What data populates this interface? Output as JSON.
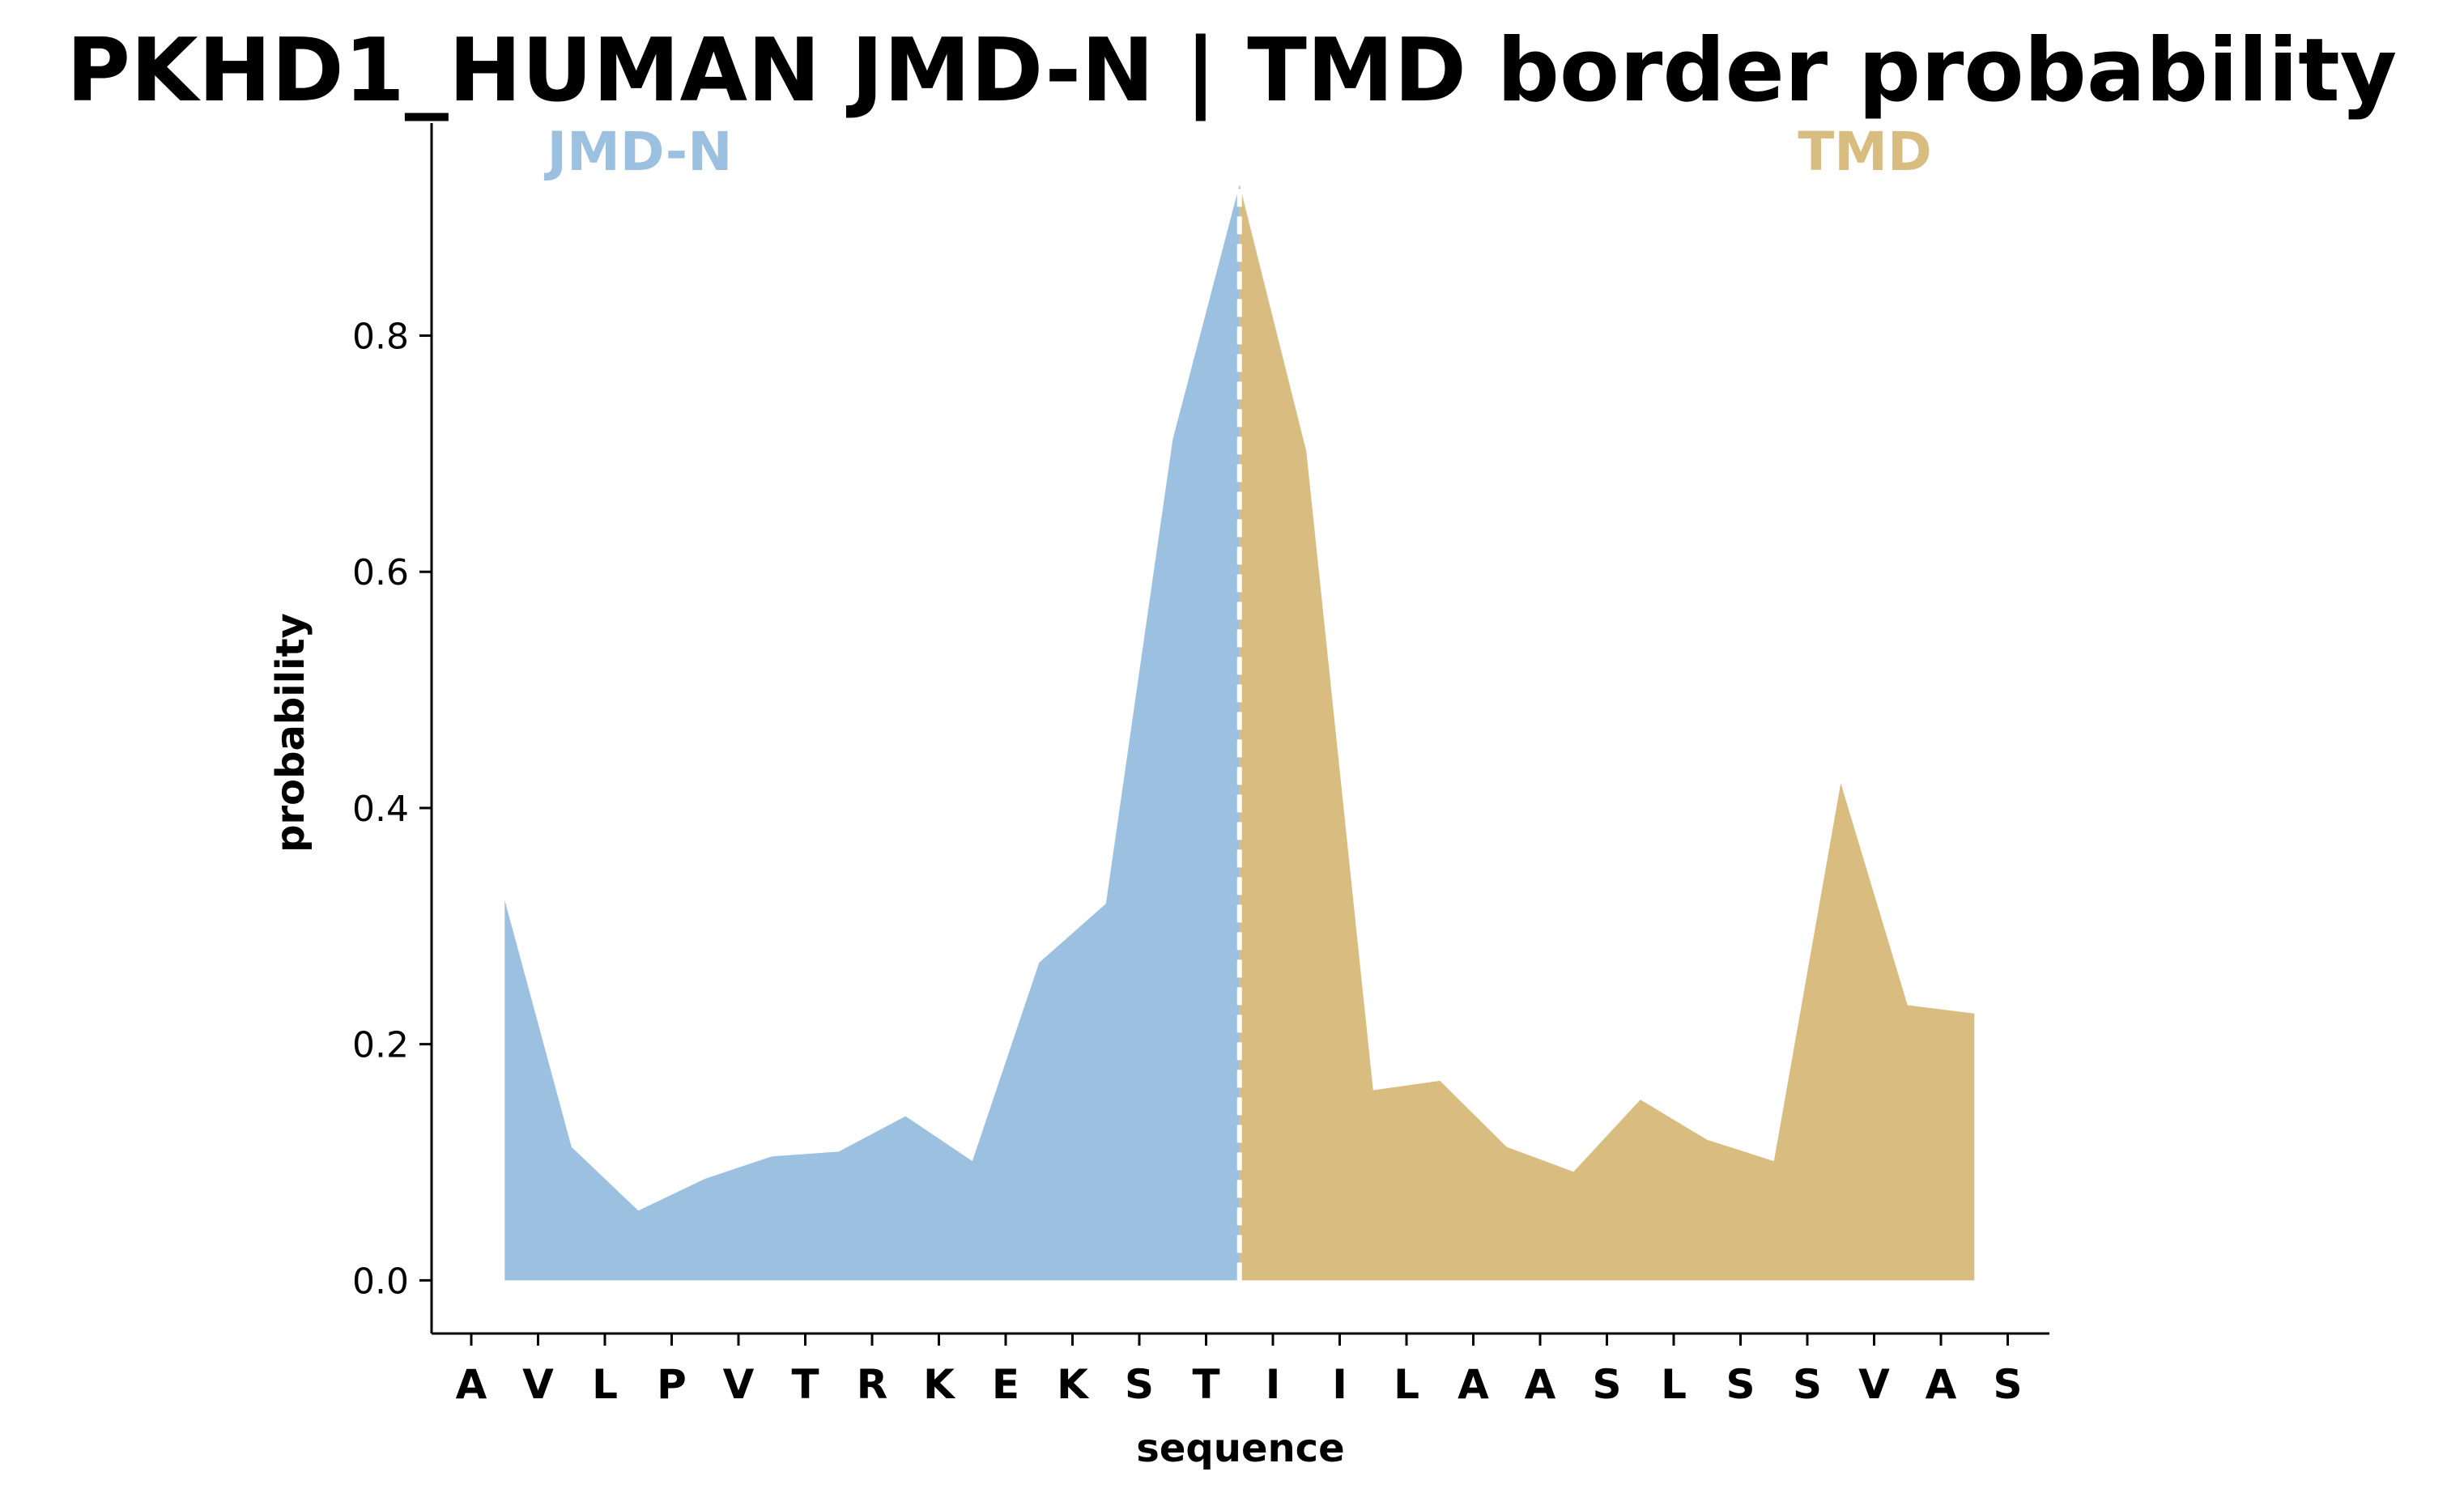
{
  "chart_data": {
    "type": "area",
    "title": "PKHD1_HUMAN JMD-N | TMD border probability",
    "xlabel": "sequence",
    "ylabel": "probability",
    "categories": [
      "A",
      "V",
      "L",
      "P",
      "V",
      "T",
      "R",
      "K",
      "E",
      "K",
      "S",
      "T",
      "I",
      "I",
      "L",
      "A",
      "A",
      "S",
      "L",
      "S",
      "S",
      "V",
      "A",
      "S"
    ],
    "yticks": [
      "0.0",
      "0.2",
      "0.4",
      "0.6",
      "0.8"
    ],
    "ylim": [
      -0.045,
      0.98
    ],
    "border_x": 11.5,
    "series": [
      {
        "name": "JMD-N",
        "color": "#9bc0e0",
        "x": [
          0.5,
          1.5,
          2.5,
          3.5,
          4.5,
          5.5,
          6.5,
          7.5,
          8.5,
          9.5,
          10.5,
          11.5
        ],
        "values": [
          0.322,
          0.113,
          0.059,
          0.086,
          0.105,
          0.109,
          0.139,
          0.101,
          0.269,
          0.319,
          0.712,
          0.928
        ]
      },
      {
        "name": "TMD",
        "color": "#d9bd80",
        "x": [
          11.5,
          12.5,
          13.5,
          14.5,
          15.5,
          16.5,
          17.5,
          18.5,
          19.5,
          20.5,
          21.5,
          22.5
        ],
        "values": [
          0.928,
          0.702,
          0.161,
          0.169,
          0.113,
          0.092,
          0.153,
          0.119,
          0.101,
          0.421,
          0.233,
          0.226
        ]
      }
    ],
    "grid": false,
    "legend": "none"
  }
}
